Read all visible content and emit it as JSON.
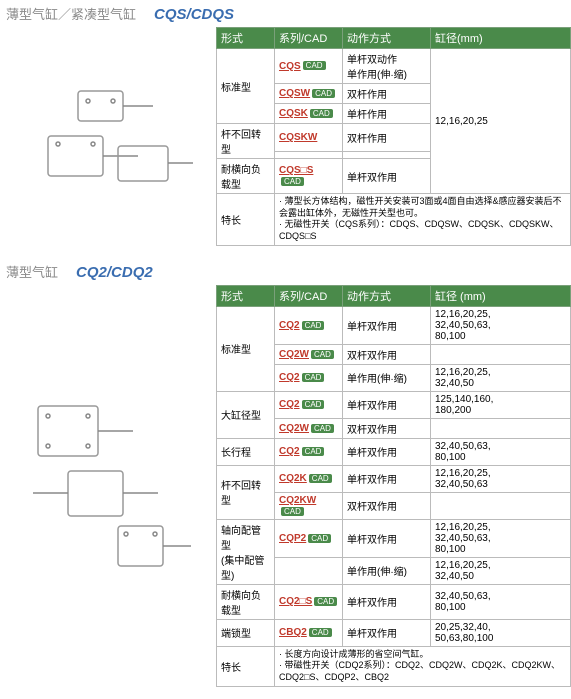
{
  "sections": [
    {
      "title_zh": "薄型气缸／紧凑型气缸",
      "title_en": "CQS/CDQS",
      "headers": [
        "形式",
        "系列/CAD",
        "动作方式",
        "缸径(mm)"
      ],
      "rows": [
        {
          "type": "标准型",
          "type_rows": 3,
          "series": "CQS",
          "cad": true,
          "action": "单杆双动作\n单作用(伸·缩)",
          "bore": "12,16,20,25",
          "bore_rows": 6
        },
        {
          "series": "CQSW",
          "cad": true,
          "action": "双杆作用"
        },
        {
          "series": "CQSK",
          "cad": true,
          "action": "单杆作用"
        },
        {
          "type": "杆不回转型",
          "type_rows": 2,
          "series": "CQSKW",
          "cad": false,
          "action": "双杆作用"
        },
        {
          "series": "",
          "cad": false,
          "action": ""
        },
        {
          "type": "耐横向负载型",
          "type_rows": 1,
          "series": "CQS□S",
          "cad": true,
          "action": "单杆双作用"
        }
      ],
      "feature_label": "特长",
      "feature_text": "· 薄型长方体结构，磁性开关安装可3面或4面自由选择&感应器安装后不会露出缸体外，无磁性开关型也可。\n· 无磁性开关（CQS系列）：CDQS、CDQSW、CDQSK、CDQSKW、CDQS□S"
    },
    {
      "title_zh": "薄型气缸",
      "title_en": "CQ2/CDQ2",
      "headers": [
        "形式",
        "系列/CAD",
        "动作方式",
        "缸径 (mm)"
      ],
      "rows": [
        {
          "type": "标准型",
          "type_rows": 3,
          "series": "CQ2",
          "cad": true,
          "action": "单杆双作用",
          "bore": "12,16,20,25,\n32,40,50,63,\n80,100"
        },
        {
          "series": "CQ2W",
          "cad": true,
          "action": "双杆双作用",
          "bore": ""
        },
        {
          "series": "CQ2",
          "cad": true,
          "action": "单作用(伸·缩)",
          "bore": "12,16,20,25,\n32,40,50"
        },
        {
          "type": "大缸径型",
          "type_rows": 2,
          "series": "CQ2",
          "cad": true,
          "action": "单杆双作用",
          "bore": "125,140,160,\n180,200"
        },
        {
          "series": "CQ2W",
          "cad": true,
          "action": "双杆双作用",
          "bore": ""
        },
        {
          "type": "长行程",
          "type_rows": 1,
          "series": "CQ2",
          "cad": true,
          "action": "单杆双作用",
          "bore": "32,40,50,63,\n80,100"
        },
        {
          "type": "杆不回转型",
          "type_rows": 2,
          "series": "CQ2K",
          "cad": true,
          "action": "单杆双作用",
          "bore": "12,16,20,25,\n32,40,50,63"
        },
        {
          "series": "CQ2KW",
          "cad": true,
          "action": "双杆双作用",
          "bore": ""
        },
        {
          "type": "轴向配管型\n(集中配管型)",
          "type_rows": 2,
          "series": "CQP2",
          "cad": true,
          "action": "单杆双作用",
          "bore": "12,16,20,25,\n32,40,50,63,\n80,100"
        },
        {
          "series": "",
          "cad": false,
          "action": "单作用(伸·缩)",
          "bore": "12,16,20,25,\n32,40,50"
        },
        {
          "type": "耐横向负载型",
          "type_rows": 1,
          "series": "CQ2□S",
          "cad": true,
          "action": "单杆双作用",
          "bore": "32,40,50,63,\n80,100"
        },
        {
          "type": "端锁型",
          "type_rows": 1,
          "series": "CBQ2",
          "cad": true,
          "action": "单杆双作用",
          "bore": "20,25,32,40,\n50,63,80,100"
        }
      ],
      "feature_label": "特长",
      "feature_text": "· 长度方向设计成薄形的省空间气缸。\n· 带磁性开关（CDQ2系列）：CDQ2、CDQ2W、CDQ2K、CDQ2KW、CDQ2□S、CDQP2、CBQ2"
    }
  ]
}
